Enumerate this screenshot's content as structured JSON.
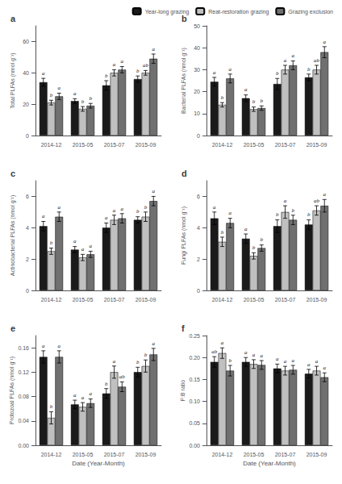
{
  "chart_data": [
    {
      "type": "bar",
      "title": "a",
      "ylabel": "Total PLFAs (nmol g⁻¹)",
      "categories": [
        "2014-12",
        "2015-05",
        "2015-07",
        "2015-09"
      ],
      "series": [
        {
          "name": "Year-long grazing",
          "color": "#1a1a1a",
          "values": [
            34,
            22,
            32,
            36
          ],
          "errors": [
            2.5,
            1.5,
            3.0,
            2.0
          ],
          "annotations": [
            "a",
            "a",
            "b",
            "b"
          ]
        },
        {
          "name": "Reat-restoration grazing",
          "color": "#c0c0c0",
          "values": [
            21,
            17,
            40,
            40
          ],
          "errors": [
            1.5,
            1.5,
            2.0,
            1.5
          ],
          "annotations": [
            "b",
            "b",
            "a",
            "ab"
          ]
        },
        {
          "name": "Grazing exclusion",
          "color": "#707070",
          "values": [
            25,
            19,
            42,
            49
          ],
          "errors": [
            2.0,
            1.5,
            2.0,
            3.0
          ],
          "annotations": [
            "a",
            "b",
            "a",
            "a"
          ]
        }
      ],
      "ylim": [
        0,
        70
      ],
      "yticks": [
        0,
        20,
        40,
        60
      ],
      "grid": false,
      "legend": "upper right"
    },
    {
      "type": "bar",
      "title": "b",
      "ylabel": "Bacterial PLFAs (nmol g⁻¹)",
      "categories": [
        "2014-12",
        "2015-05",
        "2015-07",
        "2015-09"
      ],
      "series": [
        {
          "color": "#1a1a1a",
          "values": [
            24.5,
            17,
            23.5,
            26.5
          ],
          "errors": [
            2.0,
            1.5,
            2.5,
            1.5
          ],
          "annotations": [
            "a",
            "a",
            "b",
            "b"
          ]
        },
        {
          "color": "#c0c0c0",
          "values": [
            14,
            12,
            30,
            30
          ],
          "errors": [
            1.0,
            1.0,
            2.0,
            2.0
          ],
          "annotations": [
            "b",
            "b",
            "a",
            "ab"
          ]
        },
        {
          "color": "#707070",
          "values": [
            26,
            12.5,
            32,
            38
          ],
          "errors": [
            2.0,
            1.0,
            2.0,
            2.5
          ],
          "annotations": [
            "a",
            "b",
            "a",
            "a"
          ]
        }
      ],
      "ylim": [
        0,
        50
      ],
      "yticks": [
        0,
        10,
        20,
        30,
        40,
        50
      ],
      "grid": false
    },
    {
      "type": "bar",
      "title": "c",
      "ylabel": "Actinobacterial PLFAs (nmol g⁻¹)",
      "categories": [
        "2014-12",
        "2015-05",
        "2015-07",
        "2015-09"
      ],
      "series": [
        {
          "color": "#1a1a1a",
          "values": [
            4.1,
            2.6,
            4.0,
            4.5
          ],
          "errors": [
            0.3,
            0.2,
            0.3,
            0.2
          ],
          "annotations": [
            "a",
            "a",
            "a",
            "b"
          ]
        },
        {
          "color": "#c0c0c0",
          "values": [
            2.5,
            2.1,
            4.5,
            4.7
          ],
          "errors": [
            0.2,
            0.2,
            0.3,
            0.3
          ],
          "annotations": [
            "b",
            "a",
            "a",
            "b"
          ]
        },
        {
          "color": "#707070",
          "values": [
            4.7,
            2.3,
            4.6,
            5.7
          ],
          "errors": [
            0.3,
            0.2,
            0.3,
            0.3
          ],
          "annotations": [
            "a",
            "a",
            "a",
            "a"
          ]
        }
      ],
      "ylim": [
        0,
        7
      ],
      "yticks": [
        0,
        2,
        4,
        6
      ],
      "grid": false
    },
    {
      "type": "bar",
      "title": "d",
      "ylabel": "Fungi PLFAs (nmol g⁻¹)",
      "categories": [
        "2014-12",
        "2015-05",
        "2015-07",
        "2015-09"
      ],
      "series": [
        {
          "color": "#1a1a1a",
          "values": [
            4.6,
            3.3,
            4.1,
            4.2
          ],
          "errors": [
            0.4,
            0.3,
            0.4,
            0.3
          ],
          "annotations": [
            "a",
            "a",
            "b",
            "b"
          ]
        },
        {
          "color": "#c0c0c0",
          "values": [
            3.1,
            2.2,
            5.0,
            5.1
          ],
          "errors": [
            0.3,
            0.2,
            0.4,
            0.3
          ],
          "annotations": [
            "b",
            "b",
            "a",
            "ab"
          ]
        },
        {
          "color": "#707070",
          "values": [
            4.3,
            2.7,
            4.5,
            5.4
          ],
          "errors": [
            0.3,
            0.2,
            0.3,
            0.4
          ],
          "annotations": [
            "a",
            "b",
            "b",
            "a"
          ]
        }
      ],
      "ylim": [
        0,
        7
      ],
      "yticks": [
        0,
        2,
        4,
        6
      ],
      "grid": false
    },
    {
      "type": "bar",
      "title": "e",
      "ylabel": "Protozoal PLFAs (nmol g⁻¹)",
      "xlabel": "Date (Year-Month)",
      "categories": [
        "2014-12",
        "2015-05",
        "2015-07",
        "2015-09"
      ],
      "series": [
        {
          "color": "#1a1a1a",
          "values": [
            0.145,
            0.067,
            0.085,
            0.12
          ],
          "errors": [
            0.01,
            0.007,
            0.008,
            0.008
          ],
          "annotations": [
            "a",
            "a",
            "b",
            "b"
          ]
        },
        {
          "color": "#c0c0c0",
          "values": [
            0.045,
            0.063,
            0.12,
            0.13
          ],
          "errors": [
            0.01,
            0.007,
            0.01,
            0.01
          ],
          "annotations": [
            "b",
            "a",
            "a",
            "b"
          ]
        },
        {
          "color": "#707070",
          "values": [
            0.145,
            0.069,
            0.096,
            0.149
          ],
          "errors": [
            0.01,
            0.007,
            0.008,
            0.01
          ],
          "annotations": [
            "a",
            "a",
            "ab",
            "a"
          ]
        }
      ],
      "ylim": [
        0,
        0.18
      ],
      "yticks": [
        {
          "value": 0,
          "label": "0.00"
        },
        {
          "value": 0.04,
          "label": "0.04"
        },
        {
          "value": 0.08,
          "label": "0.08"
        },
        {
          "value": 0.12,
          "label": "0.12"
        },
        {
          "value": 0.16,
          "label": "0.16"
        }
      ],
      "grid": false
    },
    {
      "type": "bar",
      "title": "f",
      "ylabel": "F:B ratio",
      "xlabel": "Date (Year-Month)",
      "categories": [
        "2014-12",
        "2015-05",
        "2015-07",
        "2015-09"
      ],
      "series": [
        {
          "color": "#1a1a1a",
          "values": [
            0.19,
            0.19,
            0.175,
            0.163
          ],
          "errors": [
            0.012,
            0.01,
            0.01,
            0.01
          ],
          "annotations": [
            "ab",
            "a",
            "a",
            "a"
          ]
        },
        {
          "color": "#c0c0c0",
          "values": [
            0.21,
            0.185,
            0.17,
            0.17
          ],
          "errors": [
            0.012,
            0.01,
            0.01,
            0.01
          ],
          "annotations": [
            "a",
            "a",
            "a",
            "a"
          ]
        },
        {
          "color": "#707070",
          "values": [
            0.17,
            0.183,
            0.172,
            0.155
          ],
          "errors": [
            0.012,
            0.01,
            0.01,
            0.01
          ],
          "annotations": [
            "b",
            "a",
            "a",
            "a"
          ]
        }
      ],
      "ylim": [
        0,
        0.25
      ],
      "yticks": [
        {
          "value": 0,
          "label": "0.00"
        },
        {
          "value": 0.05,
          "label": "0.05"
        },
        {
          "value": 0.1,
          "label": "0.10"
        },
        {
          "value": 0.15,
          "label": "0.15"
        },
        {
          "value": 0.2,
          "label": "0.20"
        },
        {
          "value": 0.25,
          "label": "0.25"
        }
      ],
      "grid": false
    }
  ]
}
